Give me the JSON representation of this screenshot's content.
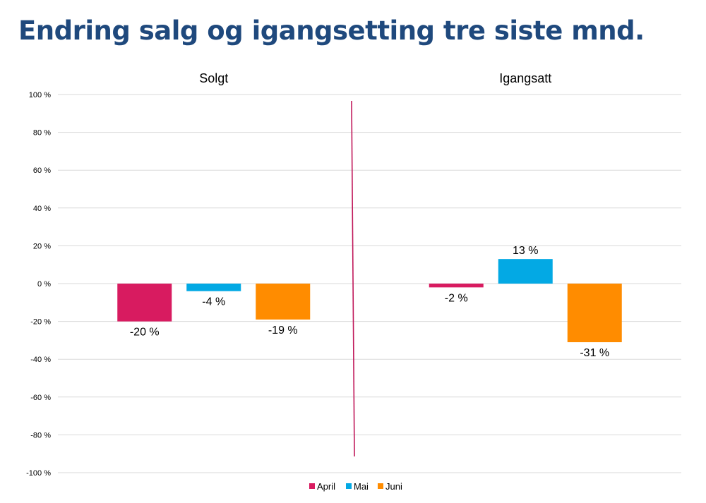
{
  "page": {
    "title": "Endring salg og igangsetting tre siste mnd."
  },
  "colors": {
    "title": "#1f497d",
    "divider": "#c0185a",
    "grid": "#d9d9d9"
  },
  "chart_data": {
    "type": "bar",
    "panels": [
      "Solgt",
      "Igangsatt"
    ],
    "series": [
      {
        "name": "April",
        "color": "#d81b60",
        "values": [
          -20,
          -2
        ],
        "labels": [
          "-20 %",
          "-2 %"
        ]
      },
      {
        "name": "Mai",
        "color": "#03a9e4",
        "values": [
          -4,
          13
        ],
        "labels": [
          "-4 %",
          "13 %"
        ]
      },
      {
        "name": "Juni",
        "color": "#ff8c00",
        "values": [
          -19,
          -31
        ],
        "labels": [
          "-19 %",
          "-31 %"
        ]
      }
    ],
    "ylim": [
      -100,
      100
    ],
    "yticks": [
      100,
      80,
      60,
      40,
      20,
      0,
      -20,
      -40,
      -60,
      -80,
      -100
    ],
    "ytick_labels": [
      "100 %",
      "80 %",
      "60 %",
      "40 %",
      "20 %",
      "0 %",
      "-20 %",
      "-40 %",
      "-60 %",
      "-80 %",
      "-100 %"
    ],
    "grid": true,
    "legend": "bottom-center"
  }
}
